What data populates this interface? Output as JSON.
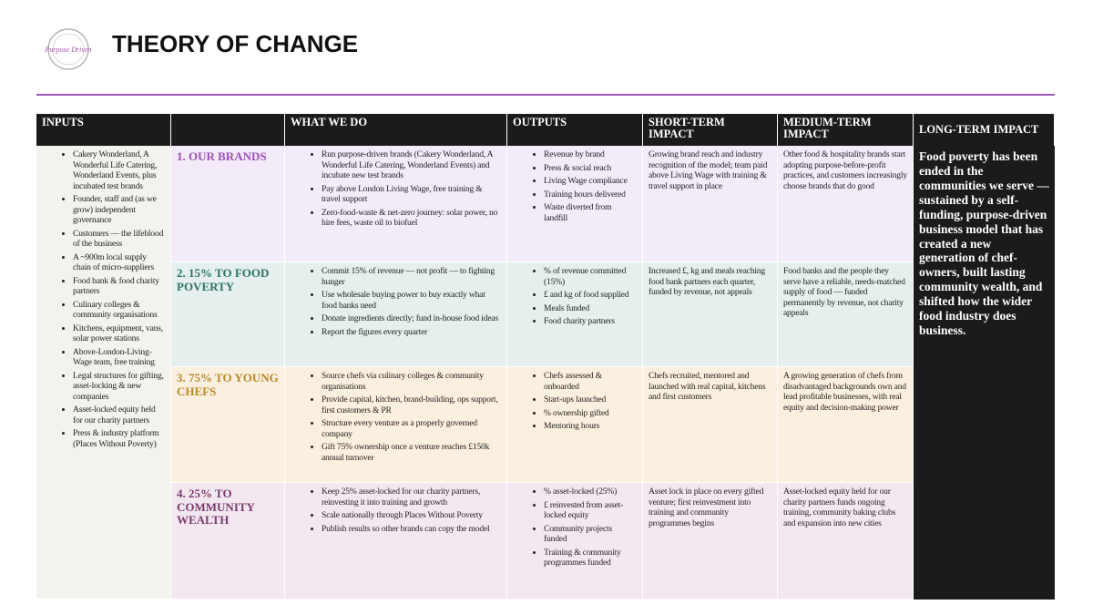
{
  "header": {
    "logo_text": "Purpose Driven",
    "title": "THEORY OF CHANGE"
  },
  "table": {
    "columns": {
      "inputs": "INPUTS",
      "what_we_do": "WHAT WE DO",
      "outputs": "OUTPUTS",
      "short_term": "SHORT-TERM IMPACT",
      "medium_term": "MEDIUM-TERM IMPACT",
      "long_term": "LONG-TERM IMPACT"
    },
    "inputs": [
      "Cakery Wonderland, A Wonderful Life Catering, Wonderland Events, plus incubated test brands",
      "Founder, staff and (as we grow) independent governance",
      "Customers — the lifeblood of the business",
      "A ~900m local supply chain of micro-suppliers",
      "Food bank & food charity partners",
      "Culinary colleges & community organisations",
      "Kitchens, equipment, vans, solar power stations",
      "Above-London-Living-Wage team, free training",
      "Legal structures for gifting, asset-locking & new companies",
      "Asset-locked equity held for our charity partners",
      "Press & industry platform (Places Without Poverty)"
    ],
    "rows": [
      {
        "label": "1. OUR BRANDS",
        "what_we_do": [
          "Run purpose-driven brands (Cakery Wonderland, A Wonderful Life Catering, Wonderland Events) and incubate new test brands",
          "Pay above London Living Wage, free training & travel support",
          "Zero-food-waste & net-zero journey: solar power, no hire fees, waste oil to biofuel"
        ],
        "outputs": [
          "Revenue by brand",
          "Press & social reach",
          "Living Wage compliance",
          "Training hours delivered",
          "Waste diverted from landfill"
        ],
        "short_term": "Growing brand reach and industry recognition of the model; team paid above Living Wage with training & travel support in place",
        "medium_term": "Other food & hospitality brands start adopting purpose-before-profit practices, and customers increasingly choose brands that do good"
      },
      {
        "label": "2. 15% TO FOOD POVERTY",
        "what_we_do": [
          "Commit 15% of revenue — not profit — to fighting hunger",
          "Use wholesale buying power to buy exactly what food banks need",
          "Donate ingredients directly; fund in-house food ideas",
          "Report the figures every quarter"
        ],
        "outputs": [
          "% of revenue committed (15%)",
          "£ and kg of food supplied",
          "Meals funded",
          "Food charity partners"
        ],
        "short_term": "Increased £, kg and meals reaching food bank partners each quarter, funded by revenue, not appeals",
        "medium_term": "Food banks and the people they serve have a reliable, needs-matched supply of food — funded permanently by revenue, not charity appeals"
      },
      {
        "label": "3. 75% TO YOUNG CHEFS",
        "what_we_do": [
          "Source chefs via culinary colleges & community organisations",
          "Provide capital, kitchen, brand-building, ops support, first customers & PR",
          "Structure every venture as a properly governed company",
          "Gift 75% ownership once a venture reaches £150k annual turnover"
        ],
        "outputs": [
          "Chefs assessed & onboarded",
          "Start-ups launched",
          "% ownership gifted",
          "Mentoring hours"
        ],
        "short_term": "Chefs recruited, mentored and launched with real capital, kitchens and first customers",
        "medium_term": "A growing generation of chefs from disadvantaged backgrounds own and lead profitable businesses, with real equity and decision-making power"
      },
      {
        "label": "4. 25% TO COMMUNITY WEALTH",
        "what_we_do": [
          "Keep 25% asset-locked for our charity partners, reinvesting it into training and growth",
          "Scale nationally through Places Without Poverty",
          "Publish results so other brands can copy the model"
        ],
        "outputs": [
          "% asset-locked (25%)",
          "£ reinvested from asset-locked equity",
          "Community projects funded",
          "Training & community programmes funded"
        ],
        "short_term": "Asset lock in place on every gifted venture; first reinvestment into training and community programmes begins",
        "medium_term": "Asset-locked equity held for our charity partners funds ongoing training, community baking clubs and expansion into new cities"
      }
    ],
    "long_term": "Food poverty has been ended in the communities we serve — sustained by a self-funding, purpose-driven business model that has created a new generation of chef-owners, built lasting community wealth, and shifted how the wider food industry does business."
  }
}
